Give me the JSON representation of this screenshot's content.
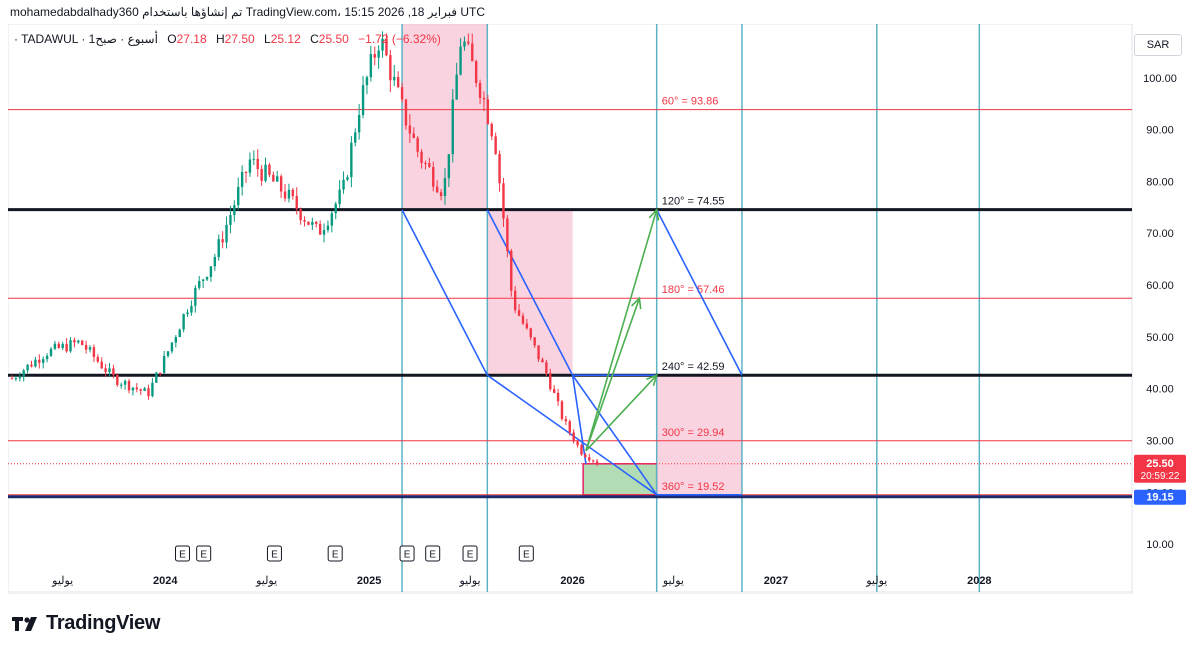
{
  "header": {
    "caption": "mohamedabdalhady360 تم إنشاؤها باستخدام TradingView.com، فبراير 18, 2026 15:15 UTC"
  },
  "legend": {
    "prefix": "· TADAWUL · 1أسبوع · صبح",
    "open_label": "O",
    "open": "27.18",
    "high_label": "H",
    "high": "27.50",
    "low_label": "L",
    "low": "25.12",
    "close_label": "C",
    "close": "25.50",
    "change": "−1.72 (−6.32%)"
  },
  "currency_button": "SAR",
  "footer": {
    "brand": "TradingView"
  },
  "colors": {
    "down": "#f23645",
    "up": "#089981",
    "gann_line": "#f23645",
    "key_level": "#131722",
    "channel": "#2962ff",
    "time_line": "#5ab4c6",
    "zone_fill": "#f8bbd0",
    "target_arrow": "#4caf50",
    "support_level": "#1a2a6c"
  },
  "chart_data": {
    "type": "candlestick",
    "title": "",
    "xlabel": "",
    "ylabel": "",
    "ylim": [
      5,
      110
    ],
    "y_ticks": [
      "10.00",
      "20.00",
      "30.00",
      "40.00",
      "50.00",
      "60.00",
      "70.00",
      "80.00",
      "90.00",
      "100.00"
    ],
    "x_range": [
      "2023-04-01",
      "2028-10-01"
    ],
    "x_ticks": [
      {
        "date": "2023-07-01",
        "label": "يوليو"
      },
      {
        "date": "2024-01-01",
        "label": "2024"
      },
      {
        "date": "2024-07-01",
        "label": "يوليو"
      },
      {
        "date": "2025-01-01",
        "label": "2025"
      },
      {
        "date": "2025-07-01",
        "label": "يوليو"
      },
      {
        "date": "2026-01-01",
        "label": "2026"
      },
      {
        "date": "2026-07-01",
        "label": "يوليو"
      },
      {
        "date": "2027-01-01",
        "label": "2027"
      },
      {
        "date": "2027-07-01",
        "label": "يوليو"
      },
      {
        "date": "2028-01-01",
        "label": "2028"
      }
    ],
    "price_path": [
      [
        "2023-04-01",
        42
      ],
      [
        "2023-06-01",
        47
      ],
      [
        "2023-08-01",
        49
      ],
      [
        "2023-10-01",
        42
      ],
      [
        "2023-12-01",
        39
      ],
      [
        "2024-01-01",
        46
      ],
      [
        "2024-02-15",
        57
      ],
      [
        "2024-04-01",
        66
      ],
      [
        "2024-06-01",
        84
      ],
      [
        "2024-08-01",
        78
      ],
      [
        "2024-10-01",
        70
      ],
      [
        "2024-11-15",
        78
      ],
      [
        "2024-12-15",
        95
      ],
      [
        "2025-01-20",
        108
      ],
      [
        "2025-03-01",
        94
      ],
      [
        "2025-04-01",
        85
      ],
      [
        "2025-05-15",
        78
      ],
      [
        "2025-06-15",
        108
      ],
      [
        "2025-07-20",
        98
      ],
      [
        "2025-08-15",
        88
      ],
      [
        "2025-09-15",
        57
      ],
      [
        "2025-10-15",
        50
      ],
      [
        "2025-11-15",
        43
      ],
      [
        "2025-12-15",
        34
      ],
      [
        "2026-01-15",
        28
      ],
      [
        "2026-02-18",
        25.5
      ]
    ],
    "last_price": {
      "value": "25.50",
      "countdown": "20:59:22"
    },
    "horizontal_levels": [
      {
        "angle": "60°",
        "value": 93.86,
        "label": "60° = 93.86",
        "kind": "gann"
      },
      {
        "angle": "120°",
        "value": 74.55,
        "label": "120° = 74.55",
        "kind": "key"
      },
      {
        "angle": "180°",
        "value": 57.46,
        "label": "180° = 57.46",
        "kind": "gann"
      },
      {
        "angle": "240°",
        "value": 42.59,
        "label": "240° = 42.59",
        "kind": "key"
      },
      {
        "angle": "300°",
        "value": 29.94,
        "label": "300° = 29.94",
        "kind": "gann"
      },
      {
        "angle": "360°",
        "value": 19.52,
        "label": "360° = 19.52",
        "kind": "gann"
      }
    ],
    "support_level": {
      "value": 19.15,
      "label": "19.15"
    },
    "time_lines": [
      "2025-03-01",
      "2025-08-01",
      "2026-06-01",
      "2026-11-01",
      "2027-07-01",
      "2028-01-01"
    ],
    "zones": [
      {
        "x1": "2025-03-01",
        "x2": "2025-08-01",
        "y1": 74.55,
        "y2": 111
      },
      {
        "x1": "2025-08-01",
        "x2": "2026-01-01",
        "y1": 42.59,
        "y2": 74.55
      },
      {
        "x1": "2026-06-01",
        "x2": "2026-11-01",
        "y1": 19.52,
        "y2": 42.59
      }
    ],
    "target_box": {
      "x1": "2026-01-20",
      "x2": "2026-06-01",
      "y1": 19.52,
      "y2": 25.5
    },
    "channels": [
      [
        [
          "2025-03-01",
          74.55
        ],
        [
          "2025-08-01",
          42.59
        ],
        [
          "2026-06-01",
          19.52
        ]
      ],
      [
        [
          "2025-08-01",
          74.55
        ],
        [
          "2026-01-01",
          42.59
        ],
        [
          "2026-01-25",
          25.5
        ]
      ],
      [
        [
          "2026-06-01",
          74.55
        ],
        [
          "2026-11-01",
          42.59
        ]
      ],
      [
        [
          "2026-01-01",
          42.59
        ],
        [
          "2026-06-01",
          42.59
        ]
      ],
      [
        [
          "2026-01-01",
          42.59
        ],
        [
          "2026-06-01",
          19.52
        ]
      ],
      [
        [
          "2026-06-01",
          19.52
        ],
        [
          "2026-11-01",
          19.52
        ]
      ]
    ],
    "target_arrows": [
      {
        "from": [
          "2026-01-25",
          28
        ],
        "to": [
          "2026-06-01",
          74.55
        ]
      },
      {
        "from": [
          "2026-01-25",
          28
        ],
        "to": [
          "2026-05-01",
          57.46
        ]
      },
      {
        "from": [
          "2026-01-25",
          28
        ],
        "to": [
          "2026-06-01",
          42.59
        ]
      }
    ],
    "events": [
      {
        "date": "2024-02-01",
        "label": "E"
      },
      {
        "date": "2024-03-10",
        "label": "E"
      },
      {
        "date": "2024-07-15",
        "label": "E"
      },
      {
        "date": "2024-11-01",
        "label": "E"
      },
      {
        "date": "2025-03-10",
        "label": "E"
      },
      {
        "date": "2025-04-25",
        "label": "E"
      },
      {
        "date": "2025-07-01",
        "label": "E"
      },
      {
        "date": "2025-10-10",
        "label": "E"
      }
    ]
  }
}
